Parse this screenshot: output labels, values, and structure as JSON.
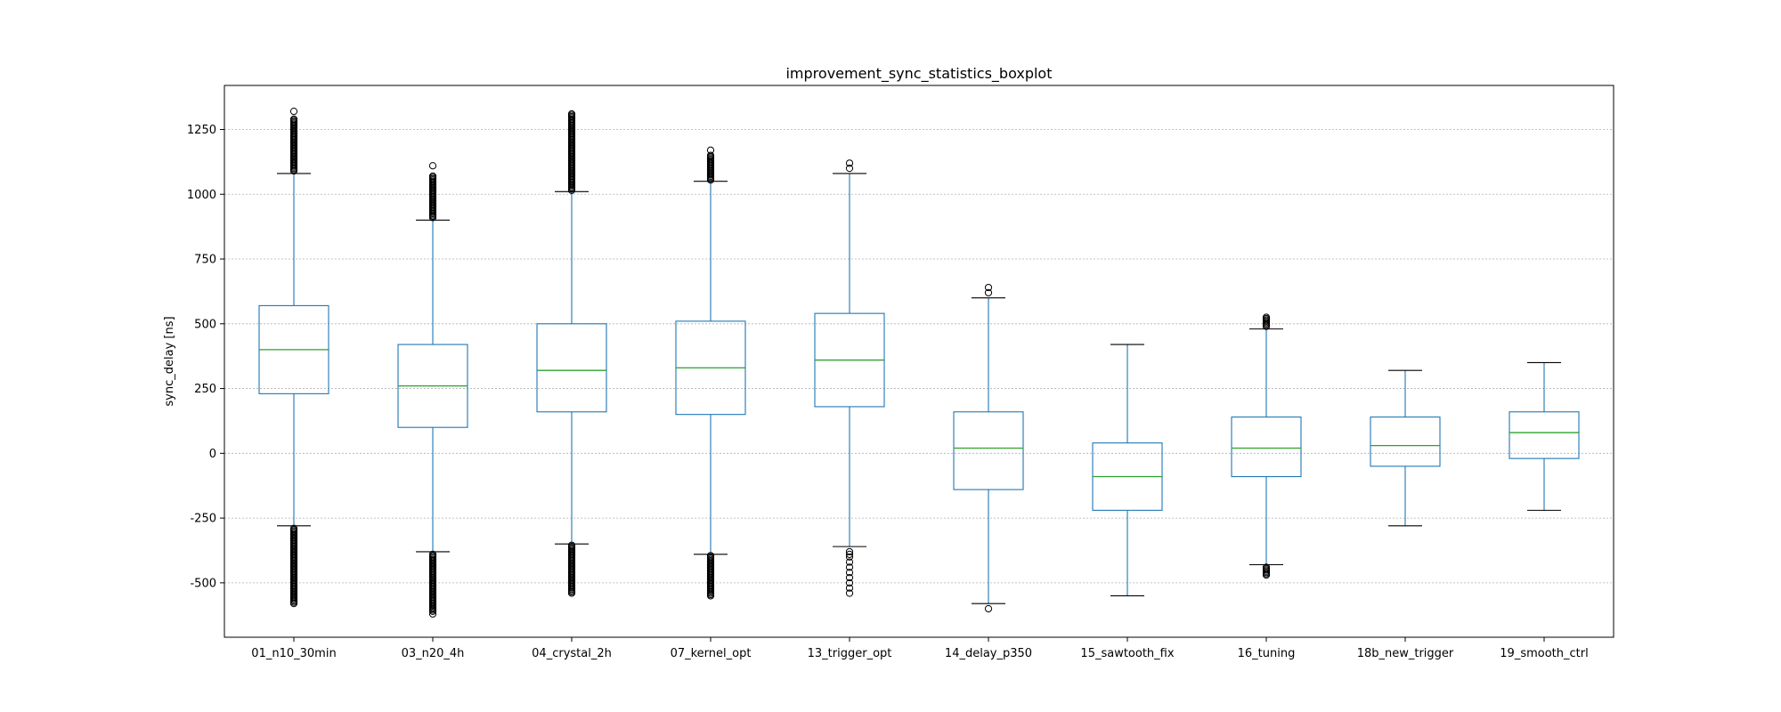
{
  "chart_data": {
    "type": "boxplot",
    "title": "improvement_sync_statistics_boxplot",
    "xlabel": "",
    "ylabel": "sync_delay [ns]",
    "ylim": [
      -710,
      1420
    ],
    "yticks": [
      -500,
      -250,
      0,
      250,
      500,
      750,
      1000,
      1250
    ],
    "grid": {
      "y": true,
      "x": false
    },
    "colors": {
      "box": "#1f77b4",
      "median": "#2ca02c",
      "whisker_cap": "#000000",
      "grid": "#b0b0b0"
    },
    "categories": [
      "01_n10_30min",
      "03_n20_4h",
      "04_crystal_2h",
      "07_kernel_opt",
      "13_trigger_opt",
      "14_delay_p350",
      "15_sawtooth_fix",
      "16_tuning",
      "18b_new_trigger",
      "19_smooth_ctrl"
    ],
    "boxes": [
      {
        "q1": 230,
        "median": 400,
        "q3": 570,
        "whisker_low": -280,
        "whisker_high": 1080,
        "fliers_low": [
          -580,
          -290
        ],
        "fliers_high": [
          1090,
          1290
        ],
        "dense_low": true,
        "dense_high": true,
        "extra_fliers": [
          1320
        ]
      },
      {
        "q1": 100,
        "median": 260,
        "q3": 420,
        "whisker_low": -380,
        "whisker_high": 900,
        "fliers_low": [
          -610,
          -390
        ],
        "fliers_high": [
          910,
          1070
        ],
        "dense_low": true,
        "dense_high": true,
        "extra_fliers": [
          1110,
          -620
        ]
      },
      {
        "q1": 160,
        "median": 320,
        "q3": 500,
        "whisker_low": -350,
        "whisker_high": 1010,
        "fliers_low": [
          -540,
          -355
        ],
        "fliers_high": [
          1015,
          1310
        ],
        "dense_low": true,
        "dense_high": true,
        "extra_fliers": []
      },
      {
        "q1": 150,
        "median": 330,
        "q3": 510,
        "whisker_low": -390,
        "whisker_high": 1050,
        "fliers_low": [
          -550,
          -395
        ],
        "fliers_high": [
          1055,
          1150
        ],
        "dense_low": true,
        "dense_high": true,
        "extra_fliers": [
          1170
        ]
      },
      {
        "q1": 180,
        "median": 360,
        "q3": 540,
        "whisker_low": -360,
        "whisker_high": 1080,
        "fliers_low": [
          -540,
          -380
        ],
        "fliers_high": [
          1100,
          1120
        ],
        "dense_low": false,
        "dense_high": false,
        "extra_fliers": [
          -520,
          -500,
          -480,
          -460,
          -440,
          -420,
          -400,
          -390
        ]
      },
      {
        "q1": -140,
        "median": 20,
        "q3": 160,
        "whisker_low": -580,
        "whisker_high": 600,
        "fliers_low": [
          -600,
          -600
        ],
        "fliers_high": [
          620,
          640
        ],
        "dense_low": false,
        "dense_high": false,
        "extra_fliers": []
      },
      {
        "q1": -220,
        "median": -90,
        "q3": 40,
        "whisker_low": -550,
        "whisker_high": 420,
        "fliers_low": [],
        "fliers_high": [],
        "dense_low": false,
        "dense_high": false,
        "extra_fliers": []
      },
      {
        "q1": -90,
        "median": 20,
        "q3": 140,
        "whisker_low": -430,
        "whisker_high": 480,
        "fliers_low": [
          -470,
          -440
        ],
        "fliers_high": [
          490,
          525
        ],
        "dense_low": true,
        "dense_high": true,
        "extra_fliers": []
      },
      {
        "q1": -50,
        "median": 30,
        "q3": 140,
        "whisker_low": -280,
        "whisker_high": 320,
        "fliers_low": [],
        "fliers_high": [],
        "dense_low": false,
        "dense_high": false,
        "extra_fliers": []
      },
      {
        "q1": -20,
        "median": 80,
        "q3": 160,
        "whisker_low": -220,
        "whisker_high": 350,
        "fliers_low": [],
        "fliers_high": [],
        "dense_low": false,
        "dense_high": false,
        "extra_fliers": []
      }
    ]
  }
}
